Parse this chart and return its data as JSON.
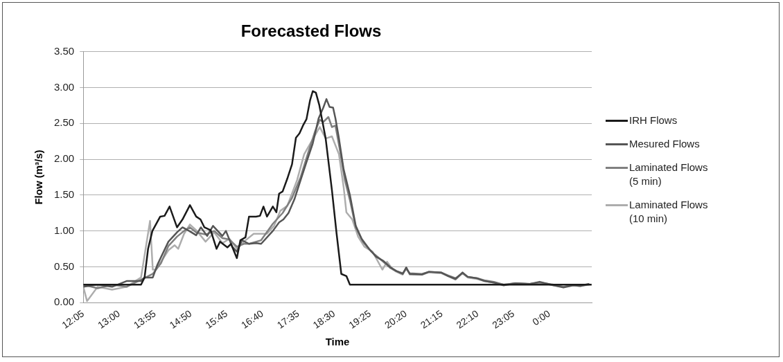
{
  "chart_data": {
    "type": "line",
    "title": "Forecasted Flows",
    "xlabel": "Time",
    "ylabel": "Flow (m³/s)",
    "xlim": [
      12.0833,
      25.0833
    ],
    "xticks": [
      {
        "value": 12.0833,
        "label": "12:05"
      },
      {
        "value": 13,
        "label": "13:00"
      },
      {
        "value": 13.9167,
        "label": "13:55"
      },
      {
        "value": 14.8333,
        "label": "14:50"
      },
      {
        "value": 15.75,
        "label": "15:45"
      },
      {
        "value": 16.6667,
        "label": "16:40"
      },
      {
        "value": 17.5833,
        "label": "17:35"
      },
      {
        "value": 18.5,
        "label": "18:30"
      },
      {
        "value": 19.4167,
        "label": "19:25"
      },
      {
        "value": 20.3333,
        "label": "20:20"
      },
      {
        "value": 21.25,
        "label": "21:15"
      },
      {
        "value": 22.1667,
        "label": "22:10"
      },
      {
        "value": 23.0833,
        "label": "23:05"
      },
      {
        "value": 24,
        "label": "0:00"
      }
    ],
    "ylim": [
      0,
      3.5
    ],
    "yticks": [
      {
        "value": 0,
        "label": "0.00"
      },
      {
        "value": 0.5,
        "label": "0.50"
      },
      {
        "value": 1,
        "label": "1.00"
      },
      {
        "value": 1.5,
        "label": "1.50"
      },
      {
        "value": 2,
        "label": "2.00"
      },
      {
        "value": 2.5,
        "label": "2.50"
      },
      {
        "value": 3,
        "label": "3.00"
      },
      {
        "value": 3.5,
        "label": "3.50"
      }
    ],
    "grid": "y",
    "legend": "right",
    "marker": "none",
    "line_style": "solid",
    "series": [
      {
        "name": "IRH Flows",
        "color": "#1a1a1a",
        "x": [
          12.0833,
          13.56,
          13.65,
          13.74,
          13.85,
          14.05,
          14.16,
          14.29,
          14.48,
          14.62,
          14.81,
          14.97,
          15.08,
          15.18,
          15.34,
          15.49,
          15.58,
          15.77,
          15.86,
          16.01,
          16.1,
          16.23,
          16.32,
          16.5,
          16.6,
          16.69,
          16.78,
          16.93,
          17.02,
          17.09,
          17.18,
          17.3,
          17.42,
          17.52,
          17.61,
          17.7,
          17.79,
          17.88,
          17.95,
          18.03,
          18.12,
          18.28,
          18.44,
          18.56,
          18.68,
          18.81,
          18.9,
          25.08
        ],
        "values": [
          0.25,
          0.25,
          0.35,
          0.75,
          1.0,
          1.2,
          1.21,
          1.34,
          1.05,
          1.16,
          1.36,
          1.2,
          1.16,
          1.05,
          1.01,
          0.75,
          0.85,
          0.77,
          0.82,
          0.62,
          0.87,
          0.91,
          1.2,
          1.2,
          1.21,
          1.34,
          1.2,
          1.34,
          1.26,
          1.52,
          1.55,
          1.73,
          1.93,
          2.3,
          2.36,
          2.47,
          2.56,
          2.82,
          2.95,
          2.93,
          2.75,
          2.29,
          1.57,
          0.96,
          0.4,
          0.37,
          0.25,
          0.25
        ]
      },
      {
        "name": "Mesured Flows",
        "color": "#555555",
        "x": [
          12.0833,
          12.45,
          12.82,
          13.19,
          13.56,
          13.65,
          13.86,
          13.98,
          14.26,
          14.48,
          14.62,
          14.79,
          14.97,
          15.09,
          15.25,
          15.4,
          15.64,
          15.73,
          15.89,
          16.01,
          16.14,
          16.32,
          16.5,
          16.63,
          16.93,
          17.09,
          17.2,
          17.33,
          17.48,
          17.64,
          17.79,
          17.95,
          18.1,
          18.22,
          18.3,
          18.38,
          18.47,
          18.53,
          18.62,
          18.74,
          18.9,
          19.05,
          19.2,
          19.39,
          19.57,
          19.76,
          19.94,
          20.09,
          20.25,
          20.34,
          20.43,
          20.74,
          20.92,
          21.23,
          21.41,
          21.6,
          21.78,
          21.91,
          22.15,
          22.34,
          22.58,
          22.83,
          23.13,
          23.5,
          23.75,
          24.11,
          24.36,
          24.61,
          24.79,
          25.02
        ],
        "values": [
          0.22,
          0.25,
          0.22,
          0.3,
          0.3,
          0.35,
          0.35,
          0.53,
          0.85,
          0.98,
          1.05,
          1.0,
          0.94,
          1.05,
          0.93,
          1.07,
          0.93,
          1.0,
          0.78,
          0.71,
          0.87,
          0.82,
          0.83,
          0.82,
          1.0,
          1.12,
          1.16,
          1.25,
          1.44,
          1.71,
          1.96,
          2.22,
          2.57,
          2.72,
          2.84,
          2.73,
          2.72,
          2.57,
          2.29,
          1.86,
          1.5,
          1.07,
          0.89,
          0.75,
          0.64,
          0.58,
          0.49,
          0.44,
          0.4,
          0.49,
          0.4,
          0.39,
          0.43,
          0.42,
          0.37,
          0.33,
          0.42,
          0.36,
          0.34,
          0.3,
          0.28,
          0.24,
          0.27,
          0.26,
          0.29,
          0.24,
          0.21,
          0.24,
          0.23,
          0.26
        ]
      },
      {
        "name": "Laminated Flows (5 min)",
        "color": "#808080",
        "x": [
          12.0833,
          12.45,
          12.82,
          13.19,
          13.56,
          13.86,
          14.07,
          14.26,
          14.48,
          14.66,
          14.81,
          14.97,
          15.21,
          15.43,
          15.64,
          15.82,
          16.01,
          16.19,
          16.32,
          16.63,
          16.93,
          17.18,
          17.42,
          17.64,
          17.82,
          18.01,
          18.13,
          18.22,
          18.35,
          18.44,
          18.53,
          18.65,
          18.77,
          18.9,
          19.05,
          19.23,
          19.45,
          19.69,
          19.94,
          20.09,
          20.25,
          20.34,
          20.43,
          20.74,
          20.92,
          21.23,
          21.41,
          21.6,
          21.78,
          21.91,
          22.15,
          22.34,
          22.58,
          22.83,
          23.13,
          23.5,
          23.75,
          24.11,
          24.36,
          24.61,
          24.79,
          25.02
        ],
        "values": [
          0.25,
          0.2,
          0.25,
          0.22,
          0.32,
          0.4,
          0.55,
          0.79,
          0.92,
          1.0,
          1.05,
          0.98,
          0.95,
          1.0,
          0.9,
          0.88,
          0.78,
          0.82,
          0.82,
          0.87,
          1.1,
          1.25,
          1.46,
          1.75,
          2.07,
          2.39,
          2.55,
          2.52,
          2.59,
          2.45,
          2.47,
          2.11,
          1.71,
          1.43,
          1.05,
          0.85,
          0.71,
          0.6,
          0.48,
          0.44,
          0.41,
          0.47,
          0.41,
          0.4,
          0.43,
          0.42,
          0.38,
          0.34,
          0.41,
          0.36,
          0.34,
          0.31,
          0.29,
          0.25,
          0.27,
          0.26,
          0.28,
          0.25,
          0.22,
          0.25,
          0.24,
          0.26
        ]
      },
      {
        "name": "Laminated Flows (10 min)",
        "color": "#adadad",
        "x": [
          12.0833,
          12.18,
          12.45,
          12.82,
          13.19,
          13.56,
          13.79,
          13.86,
          13.93,
          14.07,
          14.26,
          14.42,
          14.51,
          14.66,
          14.81,
          14.97,
          15.21,
          15.43,
          15.64,
          15.82,
          16.01,
          16.19,
          16.44,
          16.56,
          16.78,
          16.96,
          17.12,
          17.3,
          17.55,
          17.73,
          17.92,
          18.13,
          18.28,
          18.44,
          18.62,
          18.74,
          18.81,
          18.96,
          19.11,
          19.27,
          19.48,
          19.73,
          19.85,
          20.0,
          20.09,
          20.25,
          20.34,
          20.43,
          20.74,
          20.92,
          21.23,
          21.41,
          21.6,
          21.78,
          21.91,
          22.15,
          22.34,
          22.58,
          22.83,
          23.13,
          23.5,
          23.75,
          24.11,
          24.36,
          24.61,
          24.79,
          25.02
        ],
        "values": [
          0.22,
          0.02,
          0.22,
          0.18,
          0.22,
          0.35,
          1.14,
          0.46,
          0.46,
          0.57,
          0.73,
          0.8,
          0.75,
          0.96,
          1.09,
          1.01,
          0.85,
          0.98,
          0.83,
          0.89,
          0.75,
          0.85,
          0.96,
          0.96,
          0.96,
          1.07,
          1.28,
          1.35,
          1.71,
          2.07,
          2.25,
          2.45,
          2.29,
          2.32,
          2.07,
          1.61,
          1.26,
          1.16,
          0.92,
          0.78,
          0.71,
          0.46,
          0.57,
          0.46,
          0.43,
          0.39,
          0.48,
          0.39,
          0.39,
          0.42,
          0.41,
          0.37,
          0.32,
          0.41,
          0.35,
          0.33,
          0.3,
          0.28,
          0.25,
          0.27,
          0.26,
          0.28,
          0.24,
          0.22,
          0.24,
          0.23,
          0.25
        ]
      }
    ]
  }
}
